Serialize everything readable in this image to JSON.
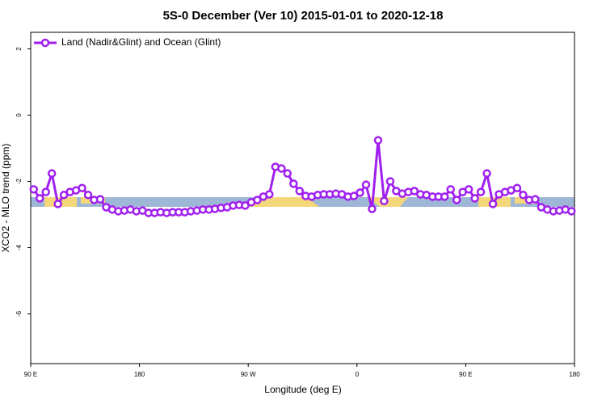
{
  "chart_data": {
    "type": "line",
    "title": "5S-0 December (Ver 10)   2015-01-01 to 2020-12-18",
    "x_label": "Longitude (deg E)",
    "y_label": "XCO2 - MLO trend (ppm)",
    "xlim": [
      90,
      540
    ],
    "xticks": [
      {
        "value": 90,
        "label": "90 E"
      },
      180,
      {
        "value": 270,
        "label": "90 W"
      },
      {
        "value": 360,
        "label": "0"
      },
      {
        "value": 450,
        "label": "90 E"
      },
      {
        "value": 540,
        "label": "180"
      }
    ],
    "ylim": [
      -7.5,
      2.5
    ],
    "yticks": [
      2,
      0,
      -2,
      -4,
      -6
    ],
    "legend": "top-left",
    "series": [
      {
        "name": "Land (Nadir&Glint) and Ocean (Glint)",
        "color": "#a020f0",
        "x": [
          92.5,
          97.5,
          102.5,
          107.5,
          112.5,
          117.5,
          122.5,
          127.5,
          132.5,
          137.5,
          142.5,
          147.5,
          152.5,
          157.5,
          162.5,
          167.5,
          172.5,
          177.5,
          182.5,
          187.5,
          192.5,
          197.5,
          202.5,
          207.5,
          212.5,
          217.5,
          222.5,
          227.5,
          232.5,
          237.5,
          242.5,
          247.5,
          252.5,
          257.5,
          262.5,
          267.5,
          272.5,
          277.5,
          282.5,
          287.5,
          292.5,
          297.5,
          302.5,
          307.5,
          312.5,
          317.5,
          322.5,
          327.5,
          332.5,
          337.5,
          342.5,
          347.5,
          352.5,
          357.5,
          362.5,
          367.5,
          372.5,
          377.5,
          382.5,
          387.5,
          392.5,
          397.5,
          402.5,
          407.5,
          412.5,
          417.5,
          422.5,
          427.5,
          432.5,
          437.5,
          442.5,
          447.5,
          452.5,
          457.5,
          462.5,
          467.5,
          472.5,
          477.5,
          482.5,
          487.5,
          492.5,
          497.5,
          502.5,
          507.5,
          512.5,
          517.5,
          522.5,
          527.5,
          532.5,
          537.5
        ],
        "values": [
          -2.24,
          -2.51,
          -2.32,
          -1.76,
          -2.68,
          -2.41,
          -2.32,
          -2.27,
          -2.2,
          -2.41,
          -2.56,
          -2.54,
          -2.78,
          -2.85,
          -2.9,
          -2.88,
          -2.85,
          -2.9,
          -2.88,
          -2.95,
          -2.95,
          -2.93,
          -2.95,
          -2.93,
          -2.93,
          -2.93,
          -2.9,
          -2.88,
          -2.85,
          -2.85,
          -2.83,
          -2.8,
          -2.78,
          -2.73,
          -2.71,
          -2.73,
          -2.63,
          -2.56,
          -2.46,
          -2.39,
          -1.56,
          -1.61,
          -1.76,
          -2.07,
          -2.29,
          -2.44,
          -2.46,
          -2.41,
          -2.39,
          -2.39,
          -2.37,
          -2.39,
          -2.46,
          -2.44,
          -2.34,
          -2.1,
          -2.83,
          -0.76,
          -2.59,
          -2.0,
          -2.29,
          -2.37,
          -2.32,
          -2.29,
          -2.39,
          -2.41,
          -2.46,
          -2.46,
          -2.46,
          -2.24,
          -2.56,
          -2.32,
          -2.24,
          -2.51,
          -2.32,
          -1.76,
          -2.68,
          -2.39,
          -2.32,
          -2.27,
          -2.2,
          -2.41,
          -2.56,
          -2.54,
          -2.78,
          -2.85,
          -2.9,
          -2.88,
          -2.85,
          -2.9
        ]
      }
    ]
  }
}
